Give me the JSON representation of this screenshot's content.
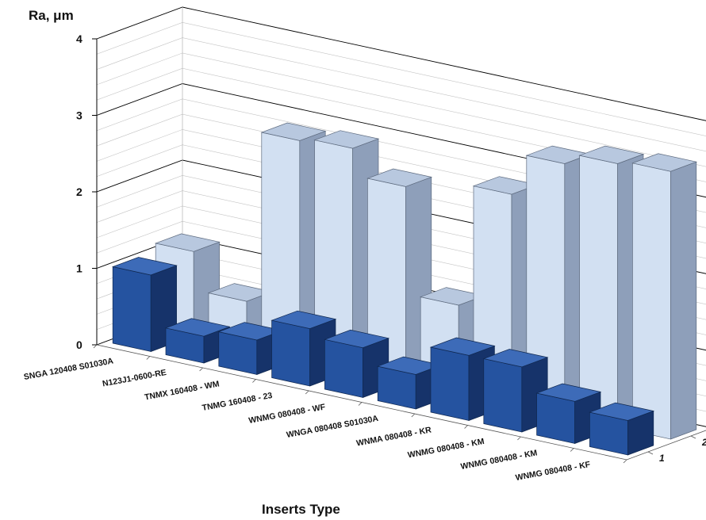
{
  "chart_data": {
    "type": "bar",
    "subtype": "3d-column",
    "ylabel": "Ra, μm",
    "xlabel": "Inserts Type",
    "ylim": [
      0,
      4
    ],
    "yticks": [
      0,
      1,
      2,
      3,
      4
    ],
    "grid": true,
    "categories": [
      "SNGA 120408 S01030A",
      "N123J1-0600-RE",
      "TNMX 160408 - WM",
      "TNMG 160408 - 23",
      "WNMG 080408 - WF",
      "WNGA 080408 S01030A",
      "WNMA 080408 - KR",
      "WNMG 080408 - KM",
      "WNMG 080408 - KM",
      "WNMG 080408 - KF"
    ],
    "series_ticks": [
      "1",
      "2"
    ],
    "series": [
      {
        "name": "1",
        "color": "#1f4e96",
        "values": [
          1.0,
          0.35,
          0.45,
          0.75,
          0.65,
          0.45,
          0.85,
          0.85,
          0.55,
          0.45
        ]
      },
      {
        "name": "2",
        "color": "#c9d9ee",
        "values": [
          1.1,
          0.6,
          2.85,
          2.9,
          2.55,
          1.15,
          2.75,
          3.3,
          3.45,
          3.5
        ]
      }
    ]
  }
}
